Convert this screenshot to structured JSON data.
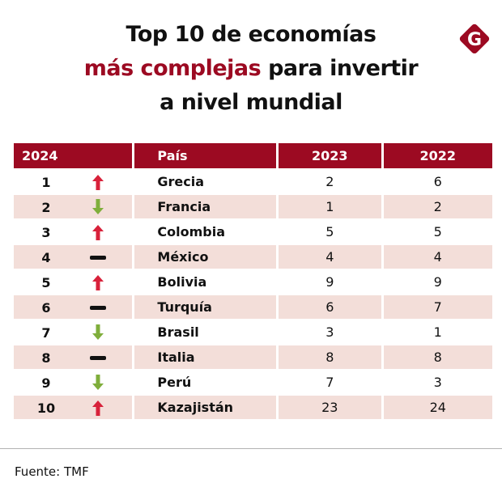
{
  "title": {
    "line1": "Top 10 de economías",
    "line2_accent": "más complejas",
    "line2_rest": " para invertir",
    "line3": "a nivel mundial"
  },
  "logo": {
    "letter": "G",
    "color": "#9c0a22"
  },
  "colors": {
    "accent": "#9c0a22",
    "row_alt": "#f3ded9",
    "trend_up": "#d8213a",
    "trend_down": "#7fae3b",
    "trend_same": "#111111"
  },
  "table": {
    "headers": [
      "2024",
      "País",
      "2023",
      "2022"
    ],
    "rows": [
      {
        "rank": "1",
        "trend": "up",
        "country": "Grecia",
        "y2023": "2",
        "y2022": "6"
      },
      {
        "rank": "2",
        "trend": "down",
        "country": "Francia",
        "y2023": "1",
        "y2022": "2"
      },
      {
        "rank": "3",
        "trend": "up",
        "country": "Colombia",
        "y2023": "5",
        "y2022": "5"
      },
      {
        "rank": "4",
        "trend": "same",
        "country": "México",
        "y2023": "4",
        "y2022": "4"
      },
      {
        "rank": "5",
        "trend": "up",
        "country": "Bolivia",
        "y2023": "9",
        "y2022": "9"
      },
      {
        "rank": "6",
        "trend": "same",
        "country": "Turquía",
        "y2023": "6",
        "y2022": "7"
      },
      {
        "rank": "7",
        "trend": "down",
        "country": "Brasil",
        "y2023": "3",
        "y2022": "1"
      },
      {
        "rank": "8",
        "trend": "same",
        "country": "Italia",
        "y2023": "8",
        "y2022": "8"
      },
      {
        "rank": "9",
        "trend": "down",
        "country": "Perú",
        "y2023": "7",
        "y2022": "3"
      },
      {
        "rank": "10",
        "trend": "up",
        "country": "Kazajistán",
        "y2023": "23",
        "y2022": "24"
      }
    ]
  },
  "source": "Fuente: TMF"
}
